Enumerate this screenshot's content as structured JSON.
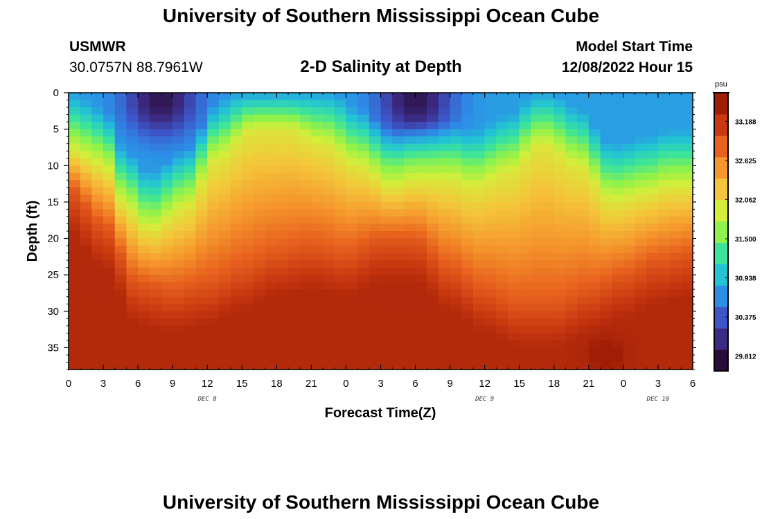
{
  "header": {
    "title": "University of Southern Mississippi Ocean Cube",
    "station_name": "USMWR",
    "station_coords": "30.0757N  88.7961W",
    "plot_title": "2-D Salinity at Depth",
    "model_label": "Model Start Time",
    "model_time": "12/08/2022 Hour 15"
  },
  "footer": {
    "title": "University of Southern Mississippi Ocean Cube"
  },
  "chart_data": {
    "type": "heatmap",
    "title": "2-D Salinity at Depth",
    "xlabel": "Forecast Time(Z)",
    "ylabel": "Depth (ft)",
    "x_tick_labels": [
      "0",
      "3",
      "6",
      "9",
      "12",
      "15",
      "18",
      "21",
      "0",
      "3",
      "6",
      "9",
      "12",
      "15",
      "18",
      "21",
      "0",
      "3",
      "6"
    ],
    "x_range_hours": [
      0,
      54
    ],
    "date_labels": [
      {
        "label": "DEC 8",
        "hour": 12
      },
      {
        "label": "DEC 9",
        "hour": 36
      },
      {
        "label": "DEC 10",
        "hour": 51
      }
    ],
    "y_tick_labels": [
      "0",
      "5",
      "10",
      "15",
      "20",
      "25",
      "30",
      "35"
    ],
    "ylim": [
      0,
      38
    ],
    "colorbar": {
      "unit": "psu",
      "range": [
        29.6,
        33.6
      ],
      "ticks": [
        "33.188",
        "32.625",
        "32.062",
        "31.500",
        "30.938",
        "30.375",
        "29.812"
      ],
      "colors": [
        "#2a0c3a",
        "#3b2a82",
        "#3d55c8",
        "#2d8ee8",
        "#22c3d4",
        "#3ce49a",
        "#8ff24a",
        "#d4ee3a",
        "#f4c53a",
        "#f5972c",
        "#e8621e",
        "#c93810",
        "#a01e06"
      ]
    },
    "salinity_description": "Surface layer ~30-31.5 psu; halocline depth oscillates between ~5 ft and ~20 ft; bottom ~33-33.5 psu",
    "isohaline_32psu_depth_ft": [
      {
        "hour": 0,
        "depth": 8
      },
      {
        "hour": 3,
        "depth": 10
      },
      {
        "hour": 5,
        "depth": 16
      },
      {
        "hour": 7,
        "depth": 19
      },
      {
        "hour": 10,
        "depth": 16
      },
      {
        "hour": 13,
        "depth": 9
      },
      {
        "hour": 16,
        "depth": 5
      },
      {
        "hour": 19,
        "depth": 5
      },
      {
        "hour": 22,
        "depth": 7
      },
      {
        "hour": 25,
        "depth": 10
      },
      {
        "hour": 28,
        "depth": 13
      },
      {
        "hour": 30,
        "depth": 12
      },
      {
        "hour": 33,
        "depth": 12
      },
      {
        "hour": 35,
        "depth": 13
      },
      {
        "hour": 38,
        "depth": 11
      },
      {
        "hour": 41,
        "depth": 7
      },
      {
        "hour": 44,
        "depth": 10
      },
      {
        "hour": 47,
        "depth": 15
      },
      {
        "hour": 50,
        "depth": 14
      },
      {
        "hour": 52,
        "depth": 13
      },
      {
        "hour": 54,
        "depth": 13
      }
    ],
    "isohaline_33psu_depth_ft": [
      {
        "hour": 0,
        "depth": 13
      },
      {
        "hour": 3,
        "depth": 18
      },
      {
        "hour": 6,
        "depth": 26
      },
      {
        "hour": 9,
        "depth": 27
      },
      {
        "hour": 12,
        "depth": 26
      },
      {
        "hour": 15,
        "depth": 24
      },
      {
        "hour": 18,
        "depth": 22
      },
      {
        "hour": 21,
        "depth": 21
      },
      {
        "hour": 24,
        "depth": 22
      },
      {
        "hour": 27,
        "depth": 20
      },
      {
        "hour": 30,
        "depth": 20
      },
      {
        "hour": 33,
        "depth": 24
      },
      {
        "hour": 36,
        "depth": 27
      },
      {
        "hour": 39,
        "depth": 29
      },
      {
        "hour": 42,
        "depth": 29
      },
      {
        "hour": 45,
        "depth": 27
      },
      {
        "hour": 48,
        "depth": 25
      },
      {
        "hour": 51,
        "depth": 23
      },
      {
        "hour": 54,
        "depth": 22
      }
    ],
    "surface_minima": [
      {
        "hour": 8,
        "depth": 1,
        "value": 29.8
      },
      {
        "hour": 30,
        "depth": 1,
        "value": 29.9
      }
    ],
    "bottom_maximum": {
      "hour": 46.5,
      "depth": 36,
      "value": 33.6
    }
  }
}
